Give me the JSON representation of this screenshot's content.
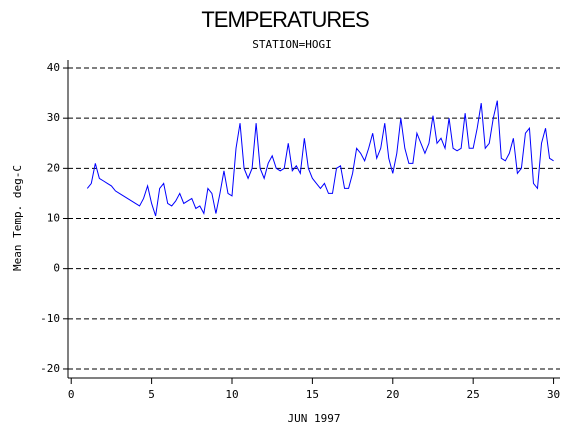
{
  "chart_data": {
    "type": "line",
    "title": "TEMPERATURES",
    "subtitle": "STATION=HOGI",
    "x_label": "JUN 1997",
    "y_label": "Mean Temp. deg-C",
    "xlim": [
      -0.2,
      30.4
    ],
    "ylim": [
      -21.8,
      41.6
    ],
    "xticks": [
      0,
      5,
      10,
      15,
      20,
      25,
      30
    ],
    "yticks": [
      -20,
      -10,
      0,
      10,
      20,
      30,
      40
    ],
    "grid": true,
    "x": [
      1,
      1.25,
      1.5,
      1.75,
      2,
      2.25,
      2.5,
      2.75,
      3,
      3.25,
      3.5,
      3.75,
      4,
      4.25,
      4.5,
      4.75,
      5,
      5.25,
      5.5,
      5.75,
      6,
      6.25,
      6.5,
      6.75,
      7,
      7.25,
      7.5,
      7.75,
      8,
      8.25,
      8.5,
      8.75,
      9,
      9.25,
      9.5,
      9.75,
      10,
      10.25,
      10.5,
      10.75,
      11,
      11.25,
      11.5,
      11.75,
      12,
      12.25,
      12.5,
      12.75,
      13,
      13.25,
      13.5,
      13.75,
      14,
      14.25,
      14.5,
      14.75,
      15,
      15.25,
      15.5,
      15.75,
      16,
      16.25,
      16.5,
      16.75,
      17,
      17.25,
      17.5,
      17.75,
      18,
      18.25,
      18.5,
      18.75,
      19,
      19.25,
      19.5,
      19.75,
      20,
      20.25,
      20.5,
      20.75,
      21,
      21.25,
      21.5,
      21.75,
      22,
      22.25,
      22.5,
      22.75,
      23,
      23.25,
      23.5,
      23.75,
      24,
      24.25,
      24.5,
      24.75,
      25,
      25.25,
      25.5,
      25.75,
      26,
      26.25,
      26.5,
      26.75,
      27,
      27.25,
      27.5,
      27.75,
      28,
      28.25,
      28.5,
      28.75,
      29,
      29.25,
      29.5,
      29.75,
      30
    ],
    "series": [
      {
        "name": "Mean Temp",
        "color": "#0000ff",
        "values": [
          16,
          17,
          21,
          18,
          17.5,
          17,
          16.5,
          15.5,
          15,
          14.5,
          14,
          13.5,
          13,
          12.5,
          14,
          16.5,
          13,
          10.5,
          16,
          17,
          13,
          12.5,
          13.5,
          15,
          13,
          13.5,
          14,
          12,
          12.5,
          11,
          16,
          15,
          11,
          15,
          19.5,
          15,
          14.5,
          24,
          29,
          20,
          18,
          20,
          29,
          20,
          18,
          21,
          22.5,
          20,
          19.5,
          20,
          25,
          19.5,
          20.5,
          19,
          26,
          20,
          18,
          17,
          16,
          17,
          15,
          15,
          20,
          20.5,
          16,
          16,
          19,
          24,
          23,
          21.5,
          24,
          27,
          22,
          24,
          29,
          22,
          19,
          23,
          30,
          24,
          21,
          21,
          27,
          25,
          23,
          25,
          30.5,
          25,
          26,
          24,
          30,
          24,
          23.5,
          24,
          31,
          24,
          24,
          28,
          33,
          24,
          25,
          30,
          33.5,
          22,
          21.5,
          23,
          26,
          19,
          20,
          27,
          28,
          17,
          16,
          25,
          28,
          22,
          21.5
        ]
      }
    ]
  }
}
